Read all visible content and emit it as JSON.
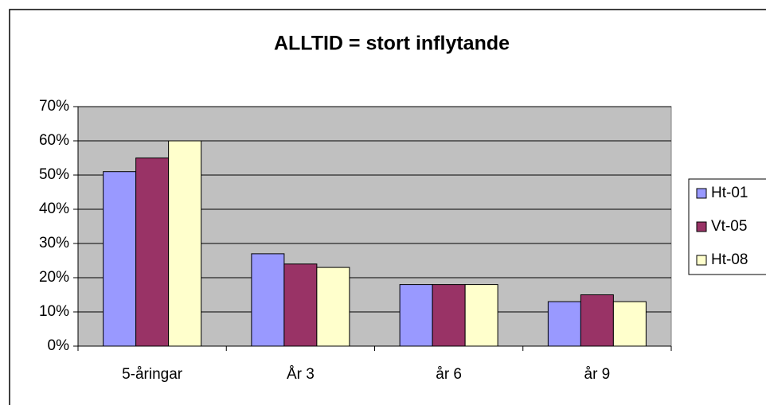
{
  "chart_data": {
    "type": "bar",
    "title": "ALLTID = stort inflytande",
    "categories": [
      "5-åringar",
      "År 3",
      "år 6",
      "år 9"
    ],
    "series": [
      {
        "name": "Ht-01",
        "color": "#9999ff",
        "values": [
          51,
          27,
          18,
          13
        ]
      },
      {
        "name": "Vt-05",
        "color": "#993366",
        "values": [
          55,
          24,
          18,
          15
        ]
      },
      {
        "name": "Ht-08",
        "color": "#ffffcc",
        "values": [
          60,
          23,
          18,
          13
        ]
      }
    ],
    "ylim": [
      0,
      70
    ],
    "yticks": [
      {
        "value": 0,
        "label": "0%"
      },
      {
        "value": 10,
        "label": "10%"
      },
      {
        "value": 20,
        "label": "20%"
      },
      {
        "value": 30,
        "label": "30%"
      },
      {
        "value": 40,
        "label": "40%"
      },
      {
        "value": 50,
        "label": "50%"
      },
      {
        "value": 60,
        "label": "60%"
      },
      {
        "value": 70,
        "label": "70%"
      }
    ],
    "grid": true,
    "legend": "right"
  }
}
